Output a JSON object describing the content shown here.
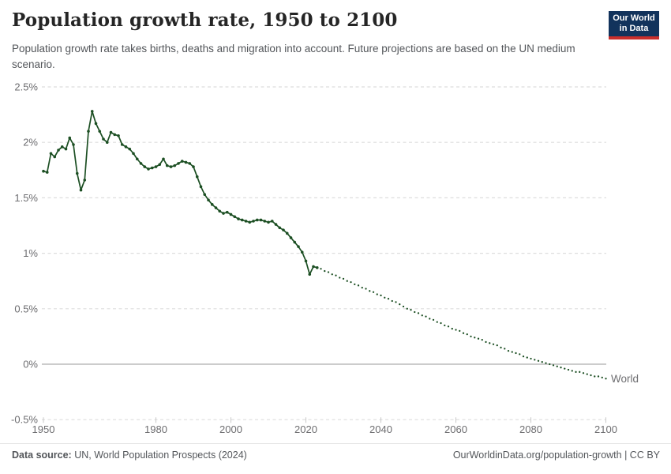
{
  "header": {
    "title": "Population growth rate, 1950 to 2100",
    "subtitle": "Population growth rate takes births, deaths and migration into account. Future projections are based on the UN medium scenario.",
    "logo": {
      "line1": "Our World",
      "line2": "in Data",
      "bg_color": "#12335c",
      "accent_color": "#c92f2c"
    }
  },
  "footer": {
    "source_label": "Data source:",
    "source_text": " UN, World Population Prospects (2024)",
    "right_text": "OurWorldinData.org/population-growth | CC BY"
  },
  "chart_data": {
    "type": "line",
    "title": "Population growth rate, 1950 to 2100",
    "xlabel": "",
    "ylabel": "",
    "entity_label": "World",
    "legend_position": "line-end-right",
    "grid": true,
    "x_range": [
      1950,
      2100
    ],
    "y_range": [
      -0.5,
      2.5
    ],
    "y_ticks": [
      {
        "v": 2.5,
        "label": "2.5%"
      },
      {
        "v": 2.0,
        "label": "2%"
      },
      {
        "v": 1.5,
        "label": "1.5%"
      },
      {
        "v": 1.0,
        "label": "1%"
      },
      {
        "v": 0.5,
        "label": "0.5%"
      },
      {
        "v": 0.0,
        "label": "0%"
      },
      {
        "v": -0.5,
        "label": "-0.5%"
      }
    ],
    "x_ticks": [
      {
        "v": 1950,
        "label": "1950"
      },
      {
        "v": 1980,
        "label": "1980"
      },
      {
        "v": 2000,
        "label": "2000"
      },
      {
        "v": 2020,
        "label": "2020"
      },
      {
        "v": 2040,
        "label": "2040"
      },
      {
        "v": 2060,
        "label": "2060"
      },
      {
        "v": 2080,
        "label": "2080"
      },
      {
        "v": 2100,
        "label": "2100"
      }
    ],
    "colors": {
      "line": "#1c4f23",
      "grid": "#dedede",
      "zero_line": "#bcbcbc",
      "tick": "#c9c9c9",
      "axis_text": "#6d6d70"
    },
    "series": [
      {
        "name": "World — historical",
        "style": "solid_with_markers",
        "points": [
          [
            1950,
            1.74
          ],
          [
            1951,
            1.73
          ],
          [
            1952,
            1.9
          ],
          [
            1953,
            1.87
          ],
          [
            1954,
            1.93
          ],
          [
            1955,
            1.96
          ],
          [
            1956,
            1.94
          ],
          [
            1957,
            2.04
          ],
          [
            1958,
            1.98
          ],
          [
            1959,
            1.72
          ],
          [
            1960,
            1.57
          ],
          [
            1961,
            1.66
          ],
          [
            1962,
            2.1
          ],
          [
            1963,
            2.28
          ],
          [
            1964,
            2.17
          ],
          [
            1965,
            2.1
          ],
          [
            1966,
            2.03
          ],
          [
            1967,
            2.0
          ],
          [
            1968,
            2.09
          ],
          [
            1969,
            2.07
          ],
          [
            1970,
            2.06
          ],
          [
            1971,
            1.98
          ],
          [
            1972,
            1.96
          ],
          [
            1973,
            1.94
          ],
          [
            1974,
            1.9
          ],
          [
            1975,
            1.85
          ],
          [
            1976,
            1.81
          ],
          [
            1977,
            1.78
          ],
          [
            1978,
            1.76
          ],
          [
            1979,
            1.77
          ],
          [
            1980,
            1.78
          ],
          [
            1981,
            1.8
          ],
          [
            1982,
            1.85
          ],
          [
            1983,
            1.79
          ],
          [
            1984,
            1.78
          ],
          [
            1985,
            1.79
          ],
          [
            1986,
            1.81
          ],
          [
            1987,
            1.83
          ],
          [
            1988,
            1.82
          ],
          [
            1989,
            1.81
          ],
          [
            1990,
            1.78
          ],
          [
            1991,
            1.69
          ],
          [
            1992,
            1.6
          ],
          [
            1993,
            1.53
          ],
          [
            1994,
            1.48
          ],
          [
            1995,
            1.44
          ],
          [
            1996,
            1.41
          ],
          [
            1997,
            1.38
          ],
          [
            1998,
            1.36
          ],
          [
            1999,
            1.37
          ],
          [
            2000,
            1.35
          ],
          [
            2001,
            1.33
          ],
          [
            2002,
            1.31
          ],
          [
            2003,
            1.3
          ],
          [
            2004,
            1.29
          ],
          [
            2005,
            1.28
          ],
          [
            2006,
            1.29
          ],
          [
            2007,
            1.3
          ],
          [
            2008,
            1.3
          ],
          [
            2009,
            1.29
          ],
          [
            2010,
            1.28
          ],
          [
            2011,
            1.29
          ],
          [
            2012,
            1.26
          ],
          [
            2013,
            1.23
          ],
          [
            2014,
            1.21
          ],
          [
            2015,
            1.18
          ],
          [
            2016,
            1.14
          ],
          [
            2017,
            1.1
          ],
          [
            2018,
            1.06
          ],
          [
            2019,
            1.01
          ],
          [
            2020,
            0.93
          ],
          [
            2021,
            0.81
          ],
          [
            2022,
            0.88
          ],
          [
            2023,
            0.87
          ]
        ]
      },
      {
        "name": "World — UN medium projection",
        "style": "dotted",
        "points": [
          [
            2024,
            0.86
          ],
          [
            2025,
            0.84
          ],
          [
            2026,
            0.83
          ],
          [
            2027,
            0.81
          ],
          [
            2028,
            0.8
          ],
          [
            2029,
            0.78
          ],
          [
            2030,
            0.77
          ],
          [
            2031,
            0.75
          ],
          [
            2032,
            0.74
          ],
          [
            2033,
            0.72
          ],
          [
            2034,
            0.71
          ],
          [
            2035,
            0.69
          ],
          [
            2036,
            0.68
          ],
          [
            2037,
            0.66
          ],
          [
            2038,
            0.65
          ],
          [
            2039,
            0.63
          ],
          [
            2040,
            0.62
          ],
          [
            2041,
            0.6
          ],
          [
            2042,
            0.59
          ],
          [
            2043,
            0.57
          ],
          [
            2044,
            0.56
          ],
          [
            2045,
            0.54
          ],
          [
            2046,
            0.52
          ],
          [
            2047,
            0.5
          ],
          [
            2048,
            0.49
          ],
          [
            2049,
            0.47
          ],
          [
            2050,
            0.46
          ],
          [
            2051,
            0.44
          ],
          [
            2052,
            0.43
          ],
          [
            2053,
            0.41
          ],
          [
            2054,
            0.4
          ],
          [
            2055,
            0.38
          ],
          [
            2056,
            0.37
          ],
          [
            2057,
            0.35
          ],
          [
            2058,
            0.34
          ],
          [
            2059,
            0.32
          ],
          [
            2060,
            0.31
          ],
          [
            2061,
            0.3
          ],
          [
            2062,
            0.28
          ],
          [
            2063,
            0.27
          ],
          [
            2064,
            0.25
          ],
          [
            2065,
            0.24
          ],
          [
            2066,
            0.23
          ],
          [
            2067,
            0.22
          ],
          [
            2068,
            0.2
          ],
          [
            2069,
            0.19
          ],
          [
            2070,
            0.18
          ],
          [
            2071,
            0.17
          ],
          [
            2072,
            0.15
          ],
          [
            2073,
            0.14
          ],
          [
            2074,
            0.12
          ],
          [
            2075,
            0.11
          ],
          [
            2076,
            0.1
          ],
          [
            2077,
            0.09
          ],
          [
            2078,
            0.07
          ],
          [
            2079,
            0.06
          ],
          [
            2080,
            0.05
          ],
          [
            2081,
            0.04
          ],
          [
            2082,
            0.03
          ],
          [
            2083,
            0.02
          ],
          [
            2084,
            0.01
          ],
          [
            2085,
            0.0
          ],
          [
            2086,
            -0.01
          ],
          [
            2087,
            -0.02
          ],
          [
            2088,
            -0.03
          ],
          [
            2089,
            -0.04
          ],
          [
            2090,
            -0.05
          ],
          [
            2091,
            -0.06
          ],
          [
            2092,
            -0.07
          ],
          [
            2093,
            -0.07
          ],
          [
            2094,
            -0.08
          ],
          [
            2095,
            -0.09
          ],
          [
            2096,
            -0.1
          ],
          [
            2097,
            -0.11
          ],
          [
            2098,
            -0.11
          ],
          [
            2099,
            -0.12
          ],
          [
            2100,
            -0.13
          ]
        ]
      }
    ]
  }
}
